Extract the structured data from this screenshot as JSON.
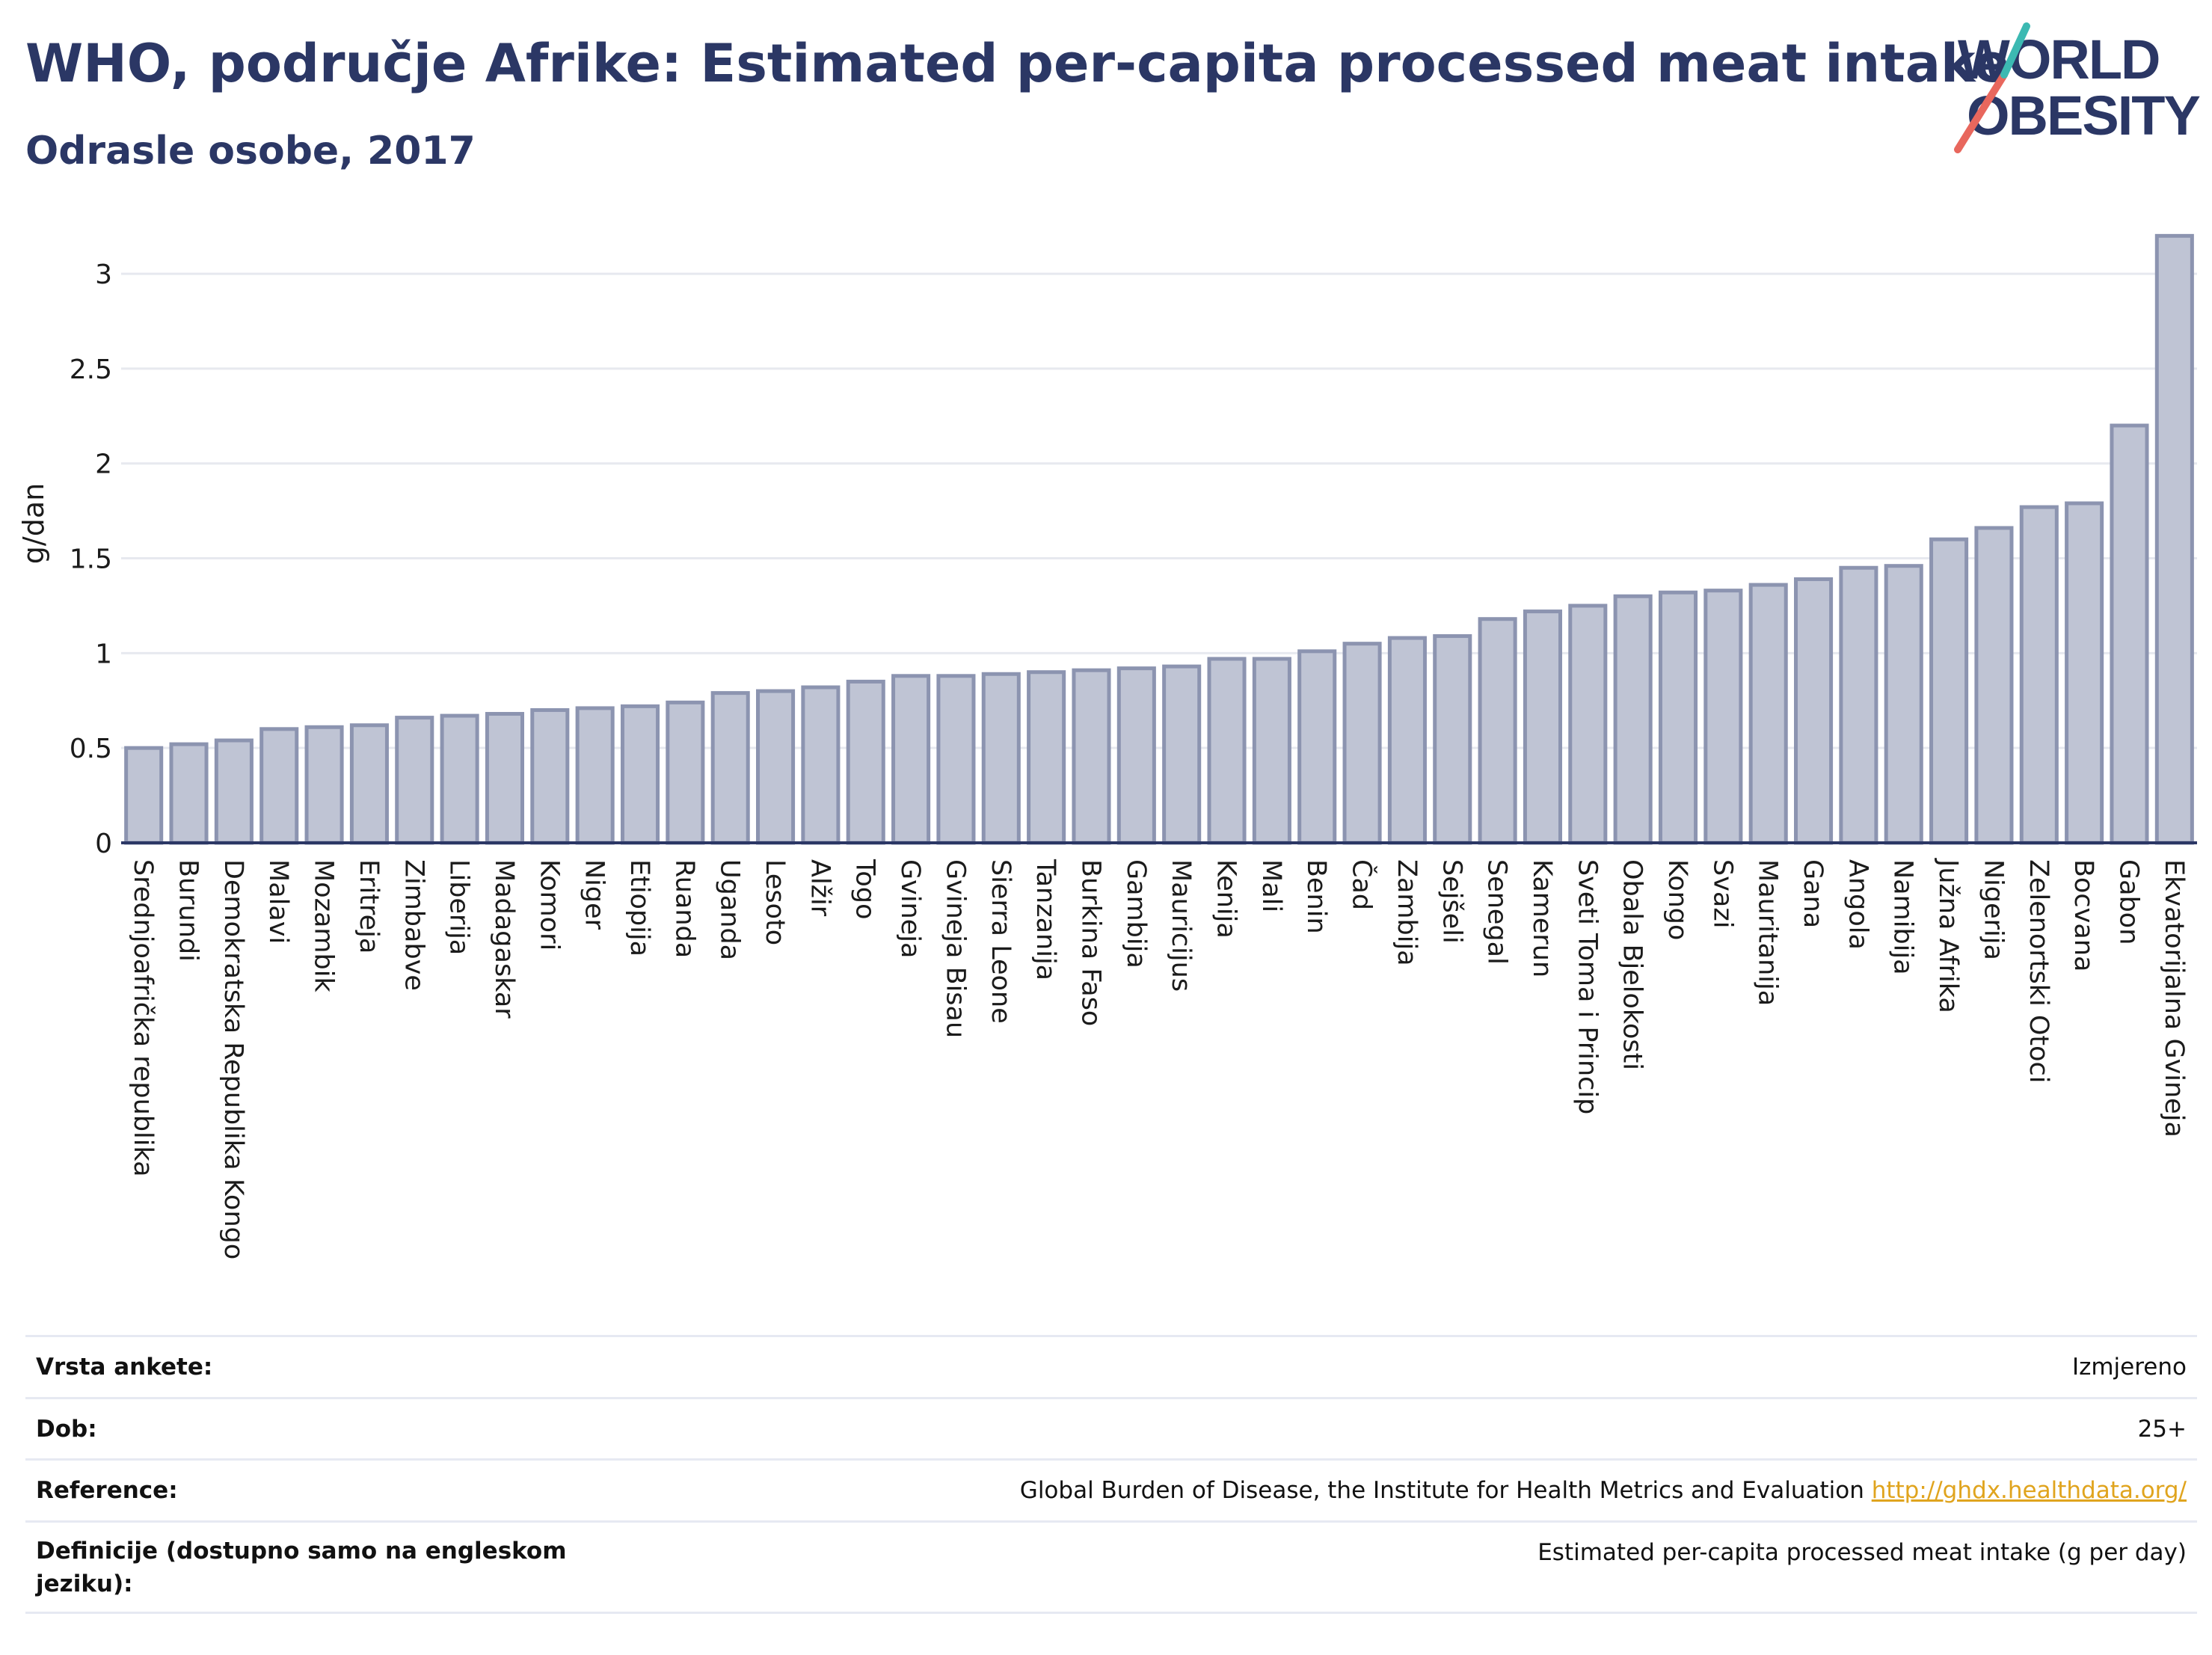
{
  "header": {
    "title": "WHO, područje Afrike: Estimated per-capita processed meat intake",
    "subtitle": "Odrasle osobe, 2017"
  },
  "logo": {
    "line1": "WORLD",
    "line2": "OBESITY"
  },
  "colors": {
    "title": "#2b3765",
    "bar_fill": "#bfc4d4",
    "bar_stroke": "#8c94b0",
    "link": "#e0a41e",
    "logo_teal": "#3cb9b2",
    "logo_red": "#e8675d"
  },
  "chart_data": {
    "type": "bar",
    "ylabel": "g/dan",
    "ylim": [
      0,
      3.3
    ],
    "yticks": [
      0,
      0.5,
      1,
      1.5,
      2,
      2.5,
      3
    ],
    "ytick_labels": [
      "0",
      "0.5",
      "1",
      "1.5",
      "2",
      "2.5",
      "3"
    ],
    "grid": true,
    "categories": [
      "Srednjoafrička republika",
      "Burundi",
      "Demokratska Republika Kongo",
      "Malavi",
      "Mozambik",
      "Eritreja",
      "Zimbabve",
      "Liberija",
      "Madagaskar",
      "Komori",
      "Niger",
      "Etiopija",
      "Ruanda",
      "Uganda",
      "Lesoto",
      "Alžir",
      "Togo",
      "Gvineja",
      "Gvineja Bisau",
      "Sierra Leone",
      "Tanzanija",
      "Burkina Faso",
      "Gambija",
      "Mauricijus",
      "Kenija",
      "Mali",
      "Benin",
      "Čad",
      "Zambija",
      "Sejšeli",
      "Senegal",
      "Kamerun",
      "Sveti Toma i Princip",
      "Obala Bjelokosti",
      "Kongo",
      "Svazi",
      "Mauritanija",
      "Gana",
      "Angola",
      "Namibija",
      "Južna Afrika",
      "Nigerija",
      "Zelenortski Otoci",
      "Bocvana",
      "Gabon",
      "Ekvatorijalna Gvineja"
    ],
    "values": [
      0.5,
      0.52,
      0.54,
      0.6,
      0.61,
      0.62,
      0.66,
      0.67,
      0.68,
      0.7,
      0.71,
      0.72,
      0.74,
      0.79,
      0.8,
      0.82,
      0.85,
      0.88,
      0.88,
      0.89,
      0.9,
      0.91,
      0.92,
      0.93,
      0.97,
      0.97,
      1.01,
      1.05,
      1.08,
      1.09,
      1.18,
      1.22,
      1.25,
      1.3,
      1.32,
      1.33,
      1.36,
      1.39,
      1.45,
      1.46,
      1.6,
      1.66,
      1.77,
      1.79,
      2.2,
      3.2
    ]
  },
  "meta": [
    {
      "key": "Vrsta ankete:",
      "value": "Izmjereno"
    },
    {
      "key": "Dob:",
      "value": "25+"
    },
    {
      "key": "Reference:",
      "value": "Global Burden of Disease, the Institute for Health Metrics and Evaluation",
      "link": "http://ghdx.healthdata.org/"
    },
    {
      "key": "Definicije (dostupno samo na engleskom jeziku):",
      "value": "Estimated per-capita processed meat intake (g per day)"
    }
  ]
}
